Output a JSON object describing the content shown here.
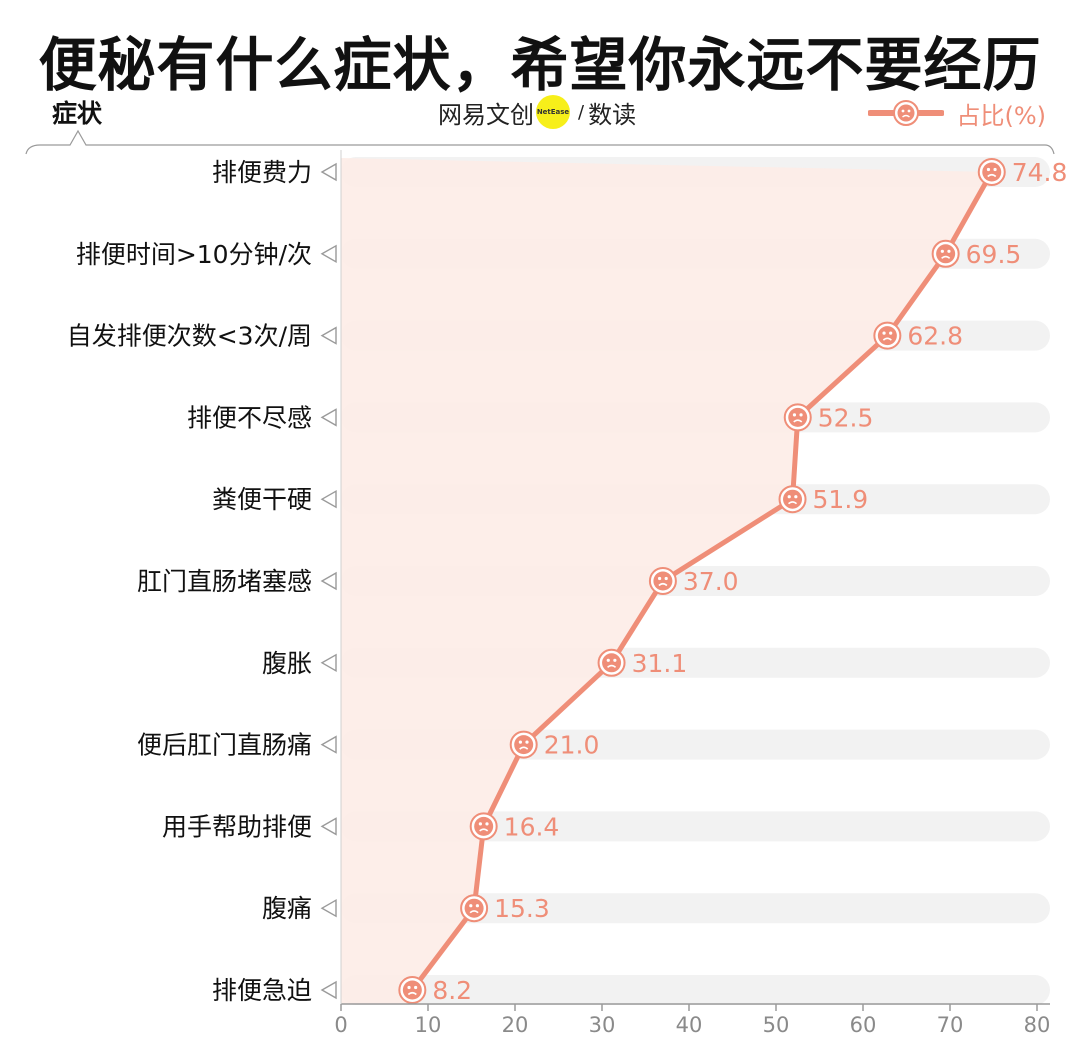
{
  "chart_data": {
    "type": "line",
    "title": "便秘有什么症状，希望你永远不要经历",
    "ylabel": "症状",
    "source_logo": {
      "left": "网易文创",
      "badge": "NetEase",
      "right": "数读"
    },
    "legend": [
      {
        "name": "占比(%)",
        "marker": "sad-face-icon",
        "placement": "top-right"
      }
    ],
    "categories": [
      "排便费力",
      "排便时间>10分钟/次",
      "自发排便次数<3次/周",
      "排便不尽感",
      "粪便干硬",
      "肛门直肠堵塞感",
      "腹胀",
      "便后肛门直肠痛",
      "用手帮助排便",
      "腹痛",
      "排便急迫"
    ],
    "series": [
      {
        "name": "占比(%)",
        "values": [
          74.8,
          69.5,
          62.8,
          52.5,
          51.9,
          37.0,
          31.1,
          21.0,
          16.4,
          15.3,
          8.2
        ],
        "labels": [
          "74.8",
          "69.5",
          "62.8",
          "52.5",
          "51.9",
          "37.0",
          "31.1",
          "21.0",
          "16.4",
          "15.3",
          "8.2"
        ]
      }
    ],
    "xlim": [
      0,
      80
    ],
    "xticks": [
      "0",
      "10",
      "20",
      "30",
      "40",
      "50",
      "60",
      "70",
      "80"
    ],
    "grid": false,
    "colors": {
      "line": "#ef8e78",
      "label": "#ef8e78",
      "area": "#fdece7",
      "track": "#f2f2f2",
      "axis": "#9a9a9a",
      "text": "#111111"
    }
  }
}
